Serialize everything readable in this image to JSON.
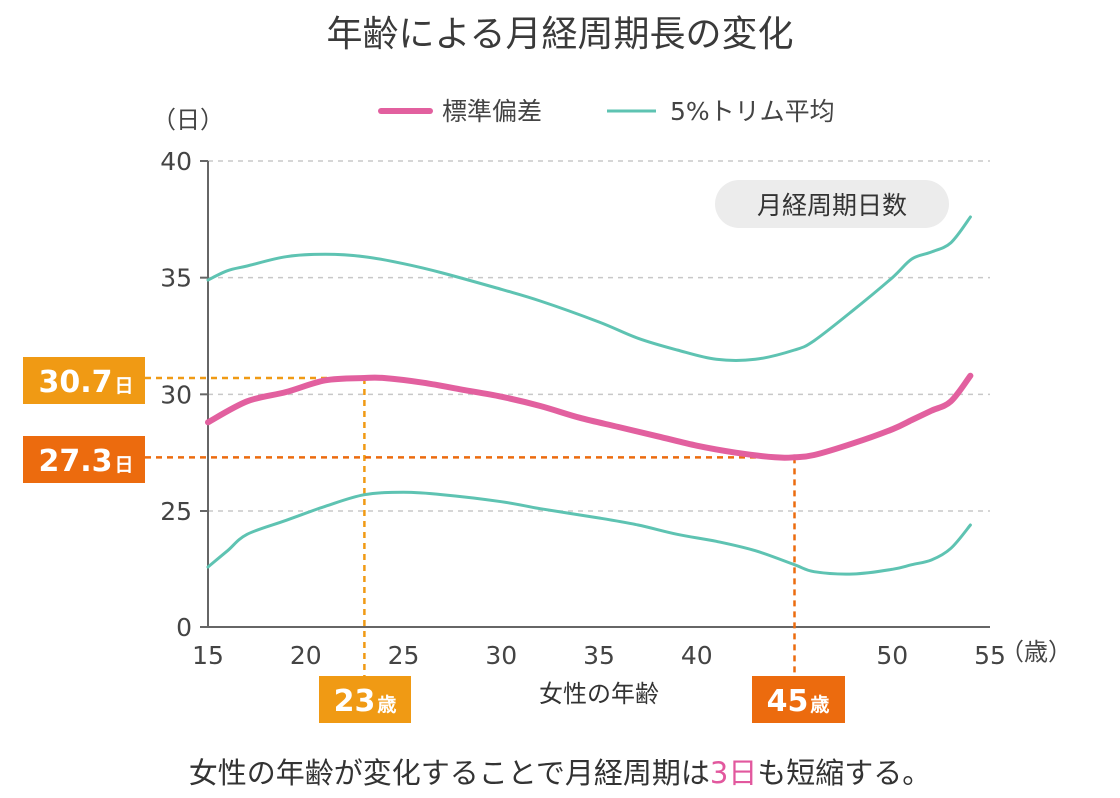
{
  "title": "年齢による月経周期長の変化",
  "ylabel": "（日）",
  "xunit": "（歳）",
  "xlabel": "女性の年齢",
  "pill": "月経周期日数",
  "legend": [
    {
      "label": "標準偏差",
      "color": "#e2609f"
    },
    {
      "label": "5%トリム平均",
      "color": "#5ec3b2"
    }
  ],
  "callouts": {
    "y_high": {
      "value": "30.7",
      "unit": "日",
      "color": "#f09a14",
      "y": 30.7
    },
    "y_low": {
      "value": "27.3",
      "unit": "日",
      "color": "#ec6b0e",
      "y": 27.3
    },
    "x_peak": {
      "value": "23",
      "unit": "歳",
      "color": "#f09a14",
      "x": 23
    },
    "x_min": {
      "value": "45",
      "unit": "歳",
      "color": "#ec6b0e",
      "x": 45
    }
  },
  "footer": {
    "before": "女性の年齢が変化することで月経周期は",
    "highlight": "3日",
    "after": "も短縮する。"
  },
  "chart_data": {
    "type": "line",
    "xlabel": "女性の年齢",
    "ylabel": "（日）",
    "x_ticks": [
      15,
      20,
      25,
      30,
      35,
      40,
      50,
      55
    ],
    "y_ticks": [
      0,
      25,
      30,
      35,
      40
    ],
    "y_axis_break": "0 shown at bottom with a gap below 25",
    "xlim": [
      15,
      55
    ],
    "grid": "horizontal dashed",
    "legend_position": "top-center",
    "series": [
      {
        "name": "標準偏差",
        "role": "mean",
        "color": "#e2609f",
        "x": [
          15,
          17,
          19,
          21,
          23,
          24,
          26,
          28,
          30,
          32,
          34,
          36,
          38,
          40,
          42,
          44,
          45,
          46,
          48,
          50,
          51,
          52,
          53,
          54
        ],
        "y": [
          28.8,
          29.7,
          30.1,
          30.6,
          30.7,
          30.7,
          30.5,
          30.2,
          29.9,
          29.5,
          29.0,
          28.6,
          28.2,
          27.8,
          27.5,
          27.3,
          27.3,
          27.4,
          27.9,
          28.5,
          28.9,
          29.3,
          29.7,
          30.8
        ]
      },
      {
        "name": "5%トリム平均",
        "role": "upper",
        "color": "#5ec3b2",
        "x": [
          15,
          16,
          17,
          19,
          21,
          23,
          25,
          27,
          30,
          32,
          35,
          37,
          39,
          41,
          43,
          45,
          46,
          48,
          50,
          51,
          52,
          53,
          54
        ],
        "y": [
          34.9,
          35.3,
          35.5,
          35.9,
          36.0,
          35.9,
          35.6,
          35.2,
          34.5,
          34.0,
          33.1,
          32.4,
          31.9,
          31.5,
          31.5,
          31.9,
          32.3,
          33.6,
          35.0,
          35.8,
          36.1,
          36.5,
          37.6
        ]
      },
      {
        "name": "5%トリム平均",
        "role": "lower",
        "color": "#5ec3b2",
        "x": [
          15,
          16,
          17,
          19,
          21,
          23,
          25,
          27,
          30,
          32,
          35,
          37,
          39,
          41,
          43,
          45,
          46,
          48,
          50,
          51,
          52,
          53,
          54
        ],
        "y": [
          22.6,
          23.3,
          24.0,
          24.6,
          25.2,
          25.7,
          25.8,
          25.7,
          25.4,
          25.1,
          24.7,
          24.4,
          24.0,
          23.7,
          23.3,
          22.7,
          22.4,
          22.3,
          22.5,
          22.7,
          22.9,
          23.4,
          24.4
        ]
      }
    ]
  }
}
